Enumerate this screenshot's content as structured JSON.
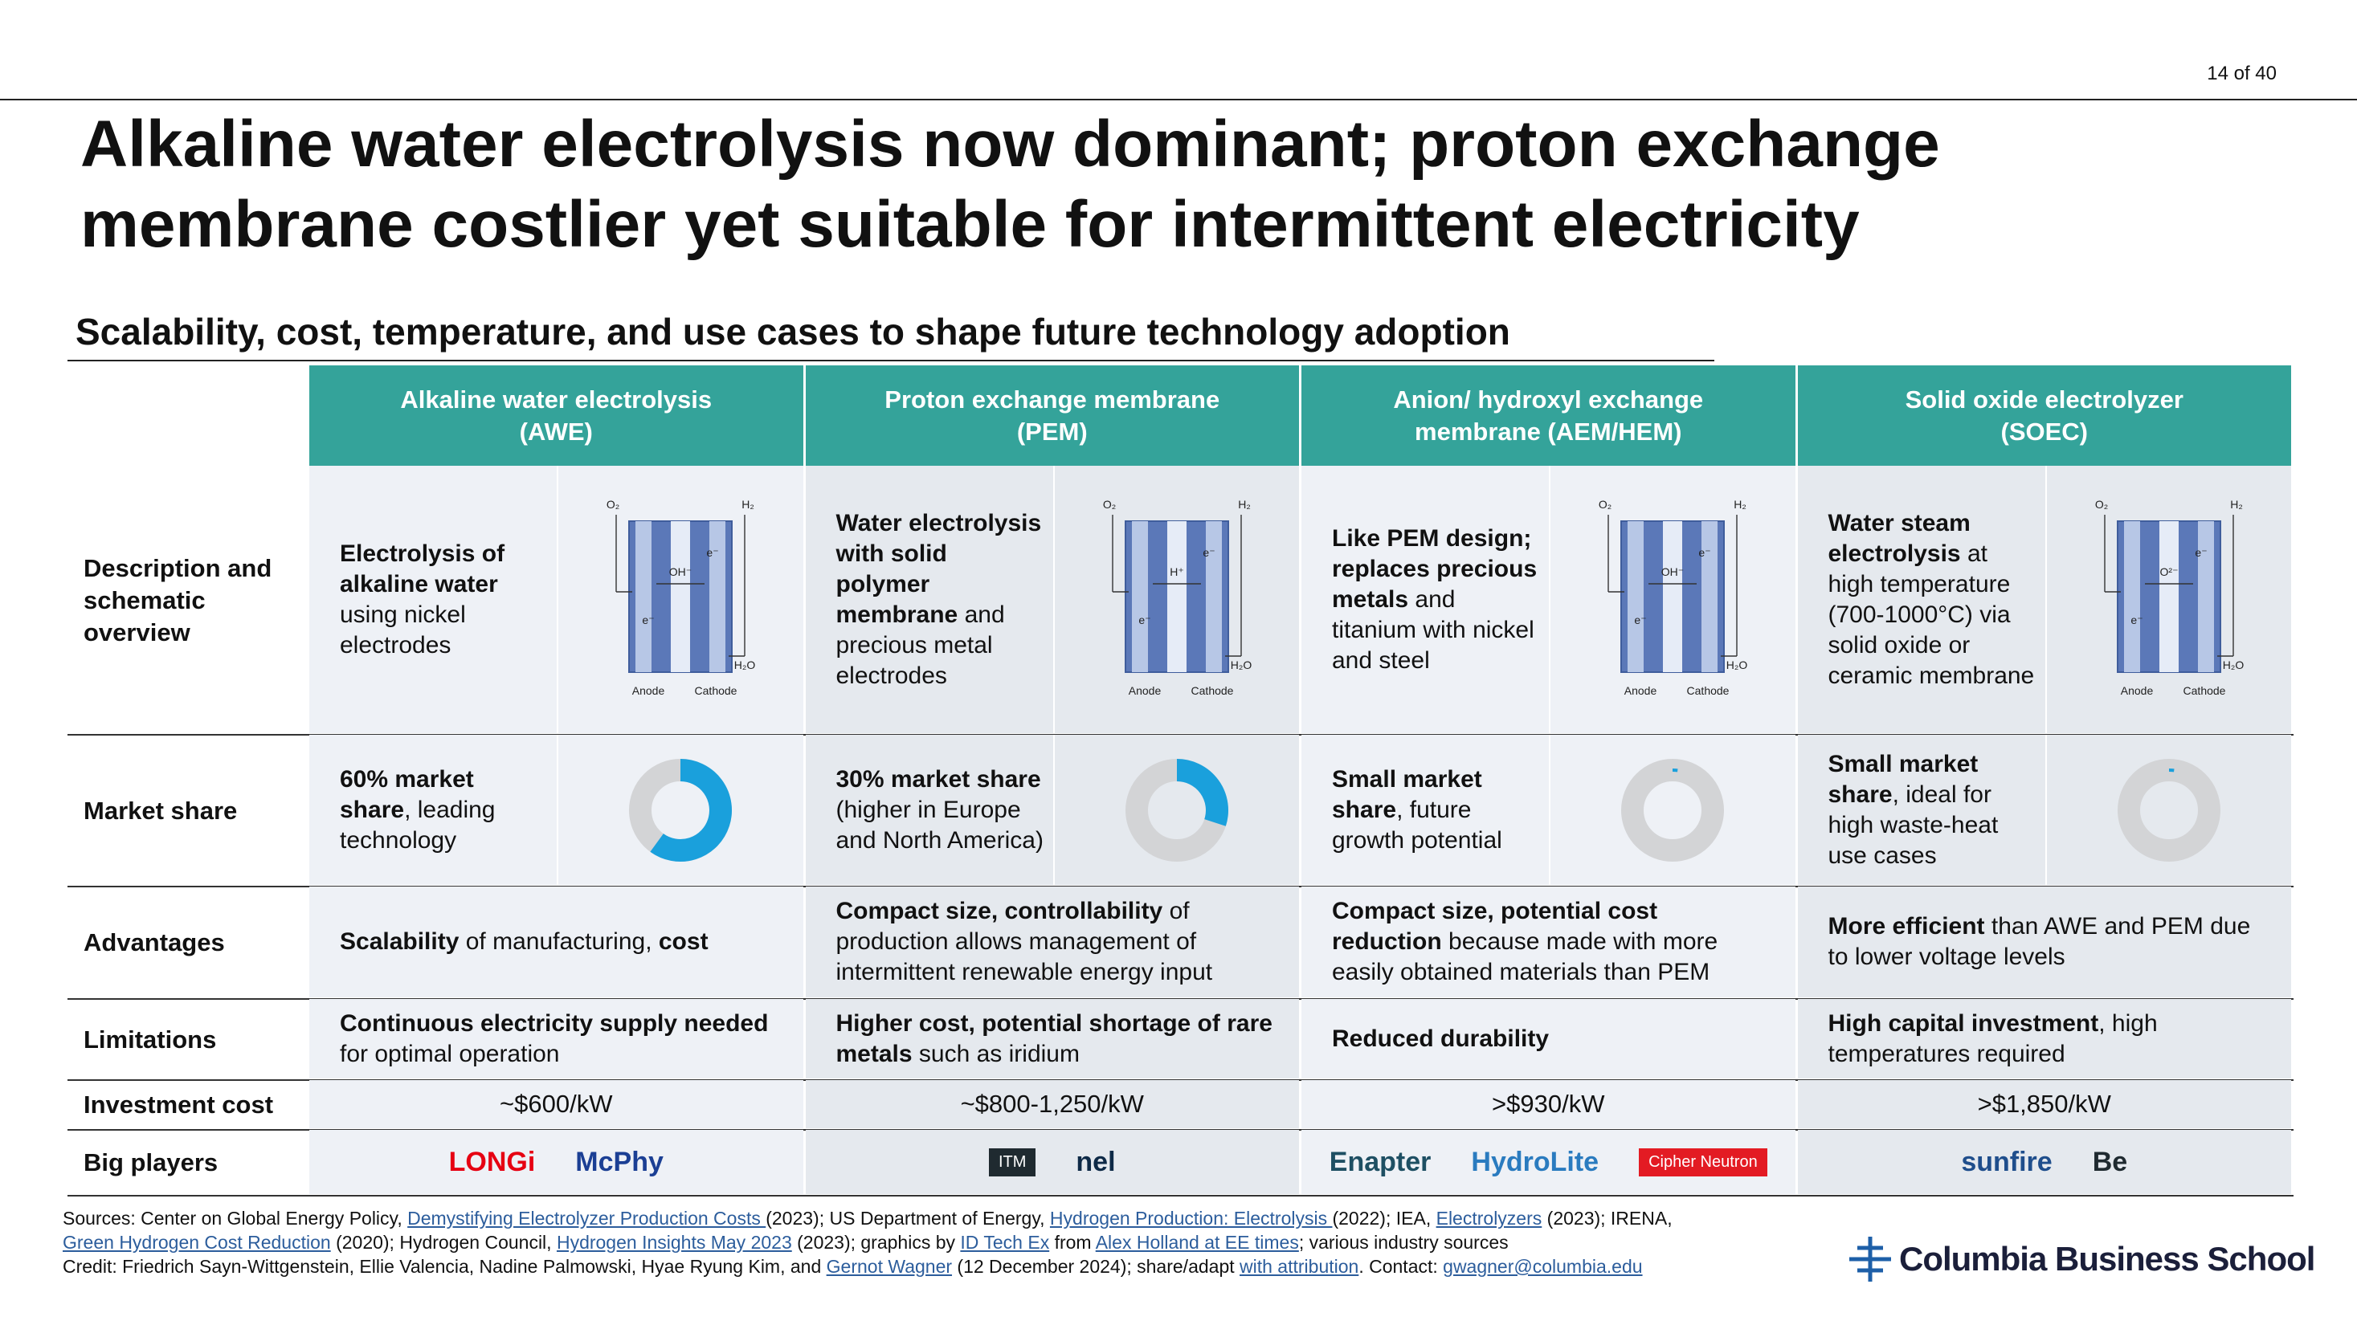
{
  "page_number": "14 of 40",
  "title_lines": [
    "Alkaline water electrolysis now dominant; proton exchange",
    "membrane costlier yet suitable for intermittent electricity"
  ],
  "subtitle": "Scalability, cost, temperature, and use cases to shape future technology adoption",
  "table": {
    "columns": [
      [
        "Alkaline water electrolysis",
        "(AWE)"
      ],
      [
        "Proton exchange membrane",
        "(PEM)"
      ],
      [
        "Anion/ hydroxyl exchange",
        "membrane (AEM/HEM)"
      ],
      [
        "Solid oxide electrolyzer",
        "(SOEC)"
      ]
    ],
    "rows": [
      {
        "label": "Description and schematic overview",
        "cells": [
          {
            "bullet": [
              {
                "b": "Electrolysis of alkaline water"
              },
              " using nickel electrodes"
            ],
            "schematic": [
              "O₂",
              "H₂",
              "OH⁻",
              "e⁻",
              "e⁻",
              "H₂O",
              "Anode",
              "Cathode"
            ]
          },
          {
            "bullet": [
              {
                "b": "Water electrolysis with solid polymer membrane"
              },
              " and precious metal electrodes"
            ],
            "schematic": [
              "O₂",
              "H₂",
              "H⁺",
              "e⁻",
              "e⁻",
              "H₂O",
              "Anode",
              "Cathode"
            ]
          },
          {
            "bullet": [
              {
                "b": "Like PEM design; replaces precious metals"
              },
              " and titanium with nickel and steel"
            ],
            "schematic": [
              "O₂",
              "H₂",
              "OH⁻",
              "e⁻",
              "e⁻",
              "H₂O",
              "Anode",
              "Cathode"
            ]
          },
          {
            "bullet": [
              {
                "b": "Water steam electrolysis"
              },
              " at high temperature (700-1000°C) via solid oxide or ceramic membrane"
            ],
            "schematic": [
              "O₂",
              "H₂",
              "O²⁻",
              "e⁻",
              "e⁻",
              "H₂O",
              "Anode",
              "Cathode"
            ]
          }
        ]
      },
      {
        "label": "Market share",
        "cells": [
          {
            "bullet": [
              {
                "b": "60% market share"
              },
              ", leading technology"
            ],
            "share": 60
          },
          {
            "bullet": [
              {
                "b": "30% market share"
              },
              " (higher in Europe and North America)"
            ],
            "share": 30
          },
          {
            "bullet": [
              {
                "b": "Small market share"
              },
              ", future growth potential"
            ],
            "share": 2
          },
          {
            "bullet": [
              {
                "b": "Small market share"
              },
              ", ideal for high waste-heat use cases"
            ],
            "share": 2
          }
        ]
      },
      {
        "label": "Advantages",
        "cells": [
          {
            "bullet": [
              {
                "b": "Scalability"
              },
              " of manufacturing, ",
              {
                "b": "cost"
              }
            ]
          },
          {
            "bullet": [
              {
                "b": "Compact size, controllability"
              },
              " of production allows management of intermittent renewable energy input"
            ]
          },
          {
            "bullet": [
              {
                "b": "Compact size, potential cost reduction"
              },
              " because made with more easily obtained materials than PEM"
            ]
          },
          {
            "bullet": [
              {
                "b": "More efficient"
              },
              " than AWE and PEM due to lower voltage levels"
            ]
          }
        ]
      },
      {
        "label": "Limitations",
        "cells": [
          {
            "bullet": [
              {
                "b": "Continuous electricity supply needed"
              },
              " for optimal operation"
            ]
          },
          {
            "bullet": [
              {
                "b": "Higher cost, potential shortage of rare metals"
              },
              " such as iridium"
            ]
          },
          {
            "bullet": [
              {
                "b": "Reduced durability"
              }
            ]
          },
          {
            "bullet": [
              {
                "b": "High capital investment"
              },
              ", high temperatures required"
            ]
          }
        ]
      },
      {
        "label": "Investment cost",
        "cells": [
          {
            "text": "~$600/kW"
          },
          {
            "text": "~$800-1,250/kW"
          },
          {
            "text": ">$930/kW"
          },
          {
            "text": ">$1,850/kW"
          }
        ]
      },
      {
        "label": "Big players",
        "cells": [
          {
            "players": [
              {
                "name": "LONGi",
                "color": "#e60012"
              },
              {
                "name": "McPhy",
                "color": "#1b3f94"
              }
            ]
          },
          {
            "players": [
              {
                "name": "ITM",
                "color": "#1f2a30",
                "boxed": true
              },
              {
                "name": "nel",
                "color": "#0e2a47"
              }
            ]
          },
          {
            "players": [
              {
                "name": "Enapter",
                "color": "#1e4f63"
              },
              {
                "name": "HydroLite",
                "color": "#2a7bbf"
              },
              {
                "name": "Cipher Neutron",
                "color": "#e31b23",
                "boxed": true
              }
            ]
          },
          {
            "players": [
              {
                "name": "sunfire",
                "color": "#1f4e8c"
              },
              {
                "name": "Be",
                "color": "#1f2a30"
              }
            ]
          }
        ]
      }
    ]
  },
  "sources": [
    [
      "Sources: Center on Global Energy Policy, ",
      {
        "link": "Demystifying Electrolyzer Production Costs "
      },
      "(2023); US Department of Energy, ",
      {
        "link": "Hydrogen Production: Electrolysis "
      },
      "(2022); IEA, ",
      {
        "link": "Electrolyzers"
      },
      " (2023); IRENA,"
    ],
    [
      {
        "link": "Green Hydrogen Cost Reduction"
      },
      " (2020); Hydrogen Council, ",
      {
        "link": "Hydrogen Insights May 2023"
      },
      " (2023); graphics by ",
      {
        "link": "ID Tech Ex"
      },
      " from ",
      {
        "link": "Alex Holland at EE times"
      },
      "; various industry sources"
    ],
    [
      "Credit: Friedrich Sayn-Wittgenstein, Ellie Valencia, Nadine Palmowski, Hyae Ryung Kim, and ",
      {
        "link": "Gernot Wagner"
      },
      " (12 December 2024); share/adapt ",
      {
        "link": "with attribution"
      },
      ". Contact: ",
      {
        "link": "gwagner@columbia.edu"
      }
    ]
  ],
  "logo": "Columbia Business School"
}
